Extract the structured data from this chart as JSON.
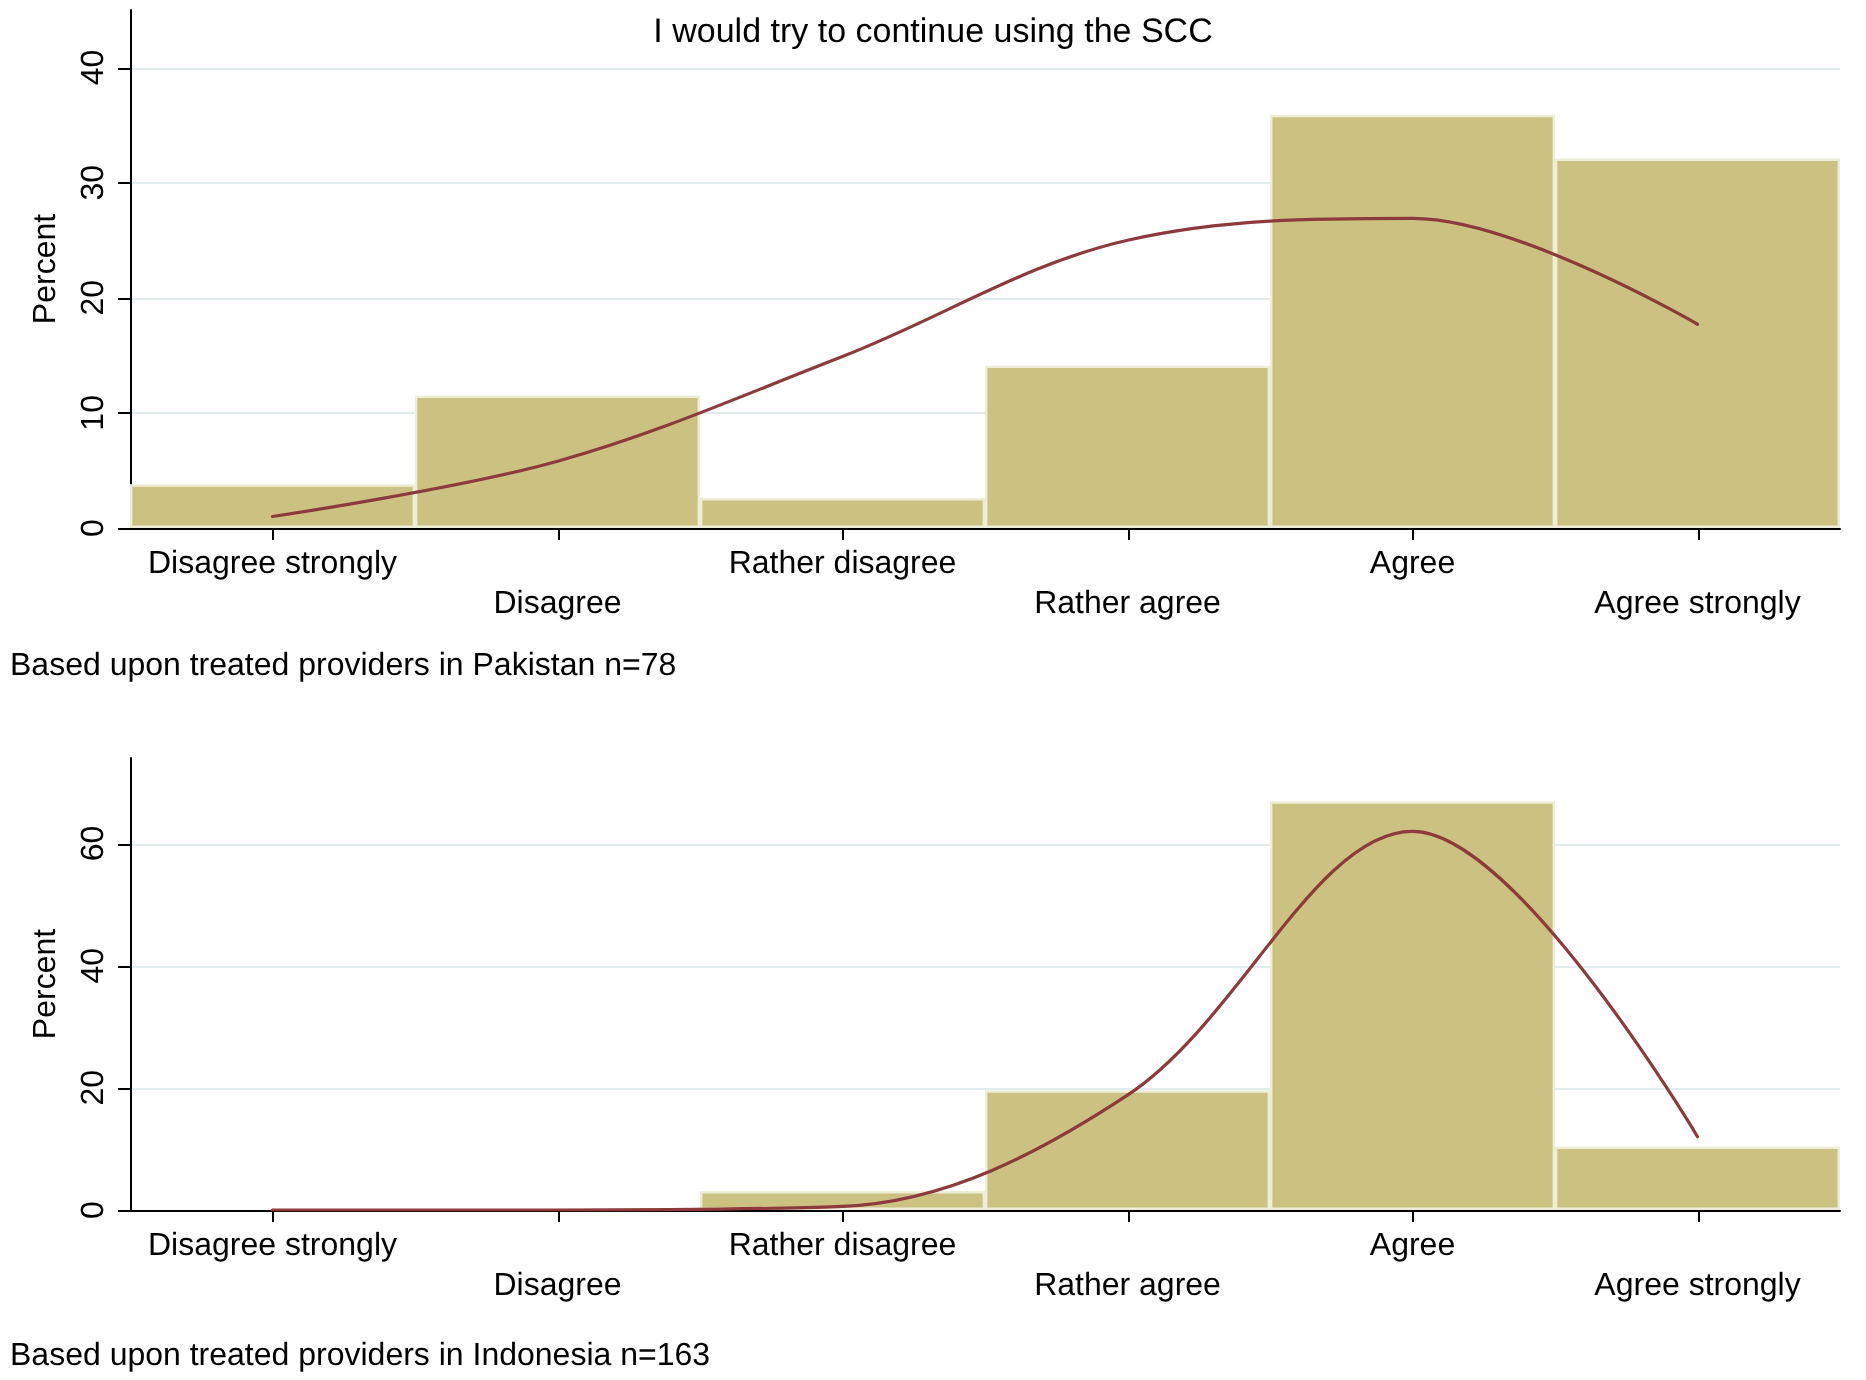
{
  "chart_data": [
    {
      "type": "bar",
      "title": "I would try to continue using the SCC",
      "ylabel": "Percent",
      "annotations": [
        "Based upon treated providers in Pakistan n=78"
      ],
      "categories": [
        "Disagree strongly",
        "Disagree",
        "Rather disagree",
        "Rather agree",
        "Agree",
        "Agree strongly"
      ],
      "ylim": [
        0,
        45
      ],
      "yticks": [
        0,
        10,
        20,
        30,
        40
      ],
      "grid": "y",
      "series": [
        {
          "color": "#cbc282",
          "values": [
            3.8,
            11.5,
            2.6,
            14.1,
            35.9,
            32.1
          ]
        },
        {
          "type": "line",
          "color": "#8e3a3c",
          "values": [
            1.0,
            5.8,
            14.9,
            25.0,
            26.9,
            17.7
          ]
        }
      ]
    },
    {
      "type": "bar",
      "ylabel": "Percent",
      "annotations": [
        "Based upon treated providers in Indonesia n=163"
      ],
      "categories": [
        "Disagree strongly",
        "Disagree",
        "Rather disagree",
        "Rather agree",
        "Agree",
        "Agree strongly"
      ],
      "ylim": [
        0,
        74
      ],
      "yticks": [
        0,
        20,
        40,
        60
      ],
      "grid": "y",
      "series": [
        {
          "color": "#cbc282",
          "values": [
            0,
            0,
            3.1,
            19.6,
            66.9,
            10.4
          ]
        },
        {
          "type": "line",
          "color": "#8e3a3c",
          "values": [
            0,
            0,
            0.6,
            18.8,
            62,
            12
          ]
        }
      ]
    }
  ]
}
